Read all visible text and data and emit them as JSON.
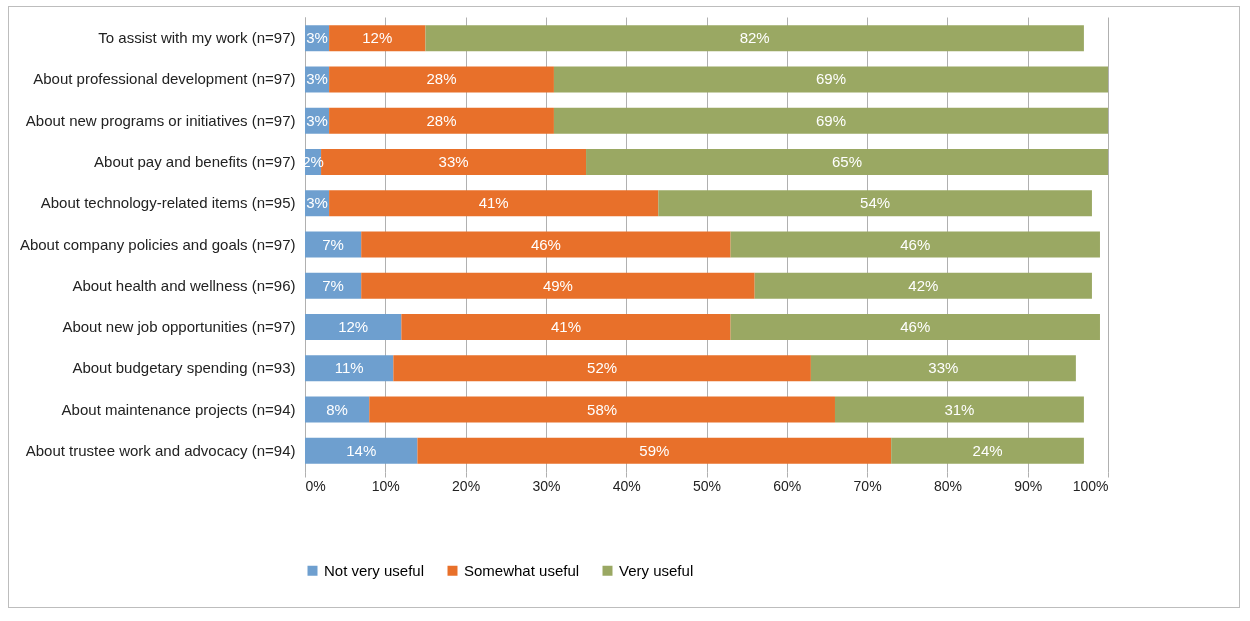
{
  "chart_data": {
    "type": "bar",
    "orientation": "horizontal",
    "stacked": true,
    "categories": [
      "To assist with my work (n=97)",
      "About professional development (n=97)",
      "About new programs or initiatives (n=97)",
      "About pay and benefits (n=97)",
      "About technology-related items (n=95)",
      "About company policies and goals (n=97)",
      "About health and wellness (n=96)",
      "About new job opportunities (n=97)",
      "About budgetary spending (n=93)",
      "About maintenance projects (n=94)",
      "About trustee work and advocacy (n=94)"
    ],
    "series": [
      {
        "name": "Not very useful",
        "color": "#6e9fcf",
        "values": [
          3,
          3,
          3,
          2,
          3,
          7,
          7,
          12,
          11,
          8,
          14
        ],
        "value_labels": [
          "3%",
          "3%",
          "3%",
          "2%",
          "3%",
          "7%",
          "7%",
          "12%",
          "11%",
          "8%",
          "14%"
        ]
      },
      {
        "name": "Somewhat useful",
        "color": "#e8702a",
        "values": [
          12,
          28,
          28,
          33,
          41,
          46,
          49,
          41,
          52,
          58,
          59
        ],
        "value_labels": [
          "12%",
          "28%",
          "28%",
          "33%",
          "41%",
          "46%",
          "49%",
          "41%",
          "52%",
          "58%",
          "59%"
        ]
      },
      {
        "name": "Very useful",
        "color": "#9aa863",
        "values": [
          82,
          69,
          69,
          65,
          54,
          46,
          42,
          46,
          33,
          31,
          24
        ],
        "value_labels": [
          "82%",
          "69%",
          "69%",
          "65%",
          "54%",
          "46%",
          "42%",
          "46%",
          "33%",
          "31%",
          "24%"
        ]
      }
    ],
    "xlim": [
      0,
      100
    ],
    "xticks": [
      {
        "value": 0,
        "label": "0%"
      },
      {
        "value": 10,
        "label": "10%"
      },
      {
        "value": 20,
        "label": "20%"
      },
      {
        "value": 30,
        "label": "30%"
      },
      {
        "value": 40,
        "label": "40%"
      },
      {
        "value": 50,
        "label": "50%"
      },
      {
        "value": 60,
        "label": "60%"
      },
      {
        "value": 70,
        "label": "70%"
      },
      {
        "value": 80,
        "label": "80%"
      },
      {
        "value": 90,
        "label": "90%"
      },
      {
        "value": 100,
        "label": "100%"
      }
    ],
    "grid": "x",
    "legend": "bottom"
  }
}
